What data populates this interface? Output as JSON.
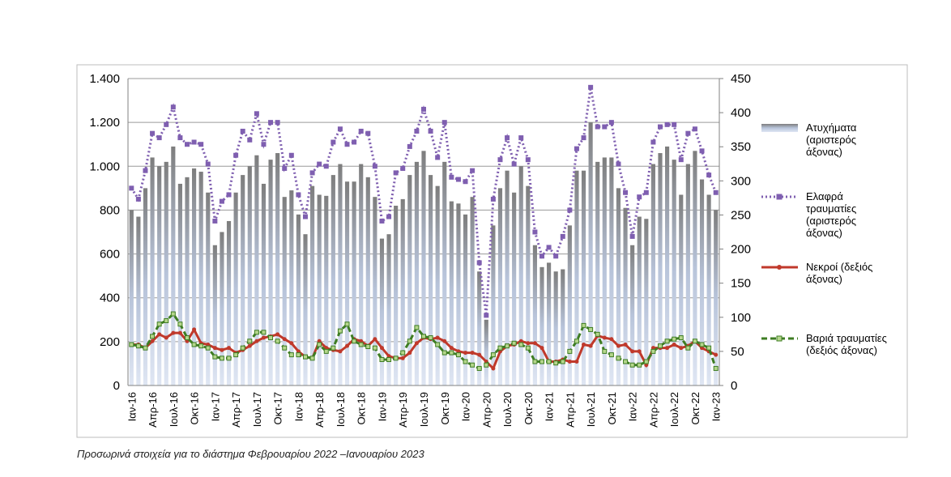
{
  "chart_data": {
    "type": "bar",
    "caption": "Προσωρινά στοιχεία για το διάστημα Φεβρουαρίου 2022 –Ιανουαρίου 2023",
    "categories": [
      "Ιαν-16",
      null,
      null,
      "Απρ-16",
      null,
      null,
      "Ιουλ-16",
      null,
      null,
      "Οκτ-16",
      null,
      null,
      "Ιαν-17",
      null,
      null,
      "Απρ-17",
      null,
      null,
      "Ιουλ-17",
      null,
      null,
      "Οκτ-17",
      null,
      null,
      "Ιαν-18",
      null,
      null,
      "Απρ-18",
      null,
      null,
      "Ιουλ-18",
      null,
      null,
      "Οκτ-18",
      null,
      null,
      "Ιαν-19",
      null,
      null,
      "Απρ-19",
      null,
      null,
      "Ιουλ-19",
      null,
      null,
      "Οκτ-19",
      null,
      null,
      "Ιαν-20",
      null,
      null,
      "Απρ-20",
      null,
      null,
      "Ιουλ-20",
      null,
      null,
      "Οκτ-20",
      null,
      null,
      "Ιαν-21",
      null,
      null,
      "Απρ-21",
      null,
      null,
      "Ιουλ-21",
      null,
      null,
      "Οκτ-21",
      null,
      null,
      "Ιαν-22",
      null,
      null,
      "Απρ-22",
      null,
      null,
      "Ιουλ-22",
      null,
      null,
      "Οκτ-22",
      null,
      null,
      "Ιαν-23"
    ],
    "series": [
      {
        "name": "Ατυχήματα (αριστερός άξονας)",
        "type": "bar",
        "color": "#8e8e8e",
        "values": [
          800,
          770,
          900,
          1040,
          1000,
          1020,
          1090,
          920,
          950,
          990,
          975,
          880,
          640,
          700,
          750,
          880,
          960,
          1000,
          1050,
          920,
          1030,
          1060,
          860,
          890,
          780,
          690,
          910,
          870,
          865,
          960,
          1010,
          930,
          930,
          1010,
          950,
          860,
          670,
          690,
          820,
          850,
          960,
          1020,
          1070,
          960,
          910,
          1020,
          840,
          830,
          780,
          860,
          520,
          300,
          730,
          900,
          980,
          880,
          1000,
          910,
          640,
          540,
          560,
          520,
          530,
          730,
          980,
          980,
          1200,
          1020,
          1040,
          1040,
          900,
          810,
          640,
          770,
          760,
          1010,
          1060,
          1090,
          1030,
          870,
          1010,
          1070,
          940,
          870,
          800
        ]
      },
      {
        "name": "Ελαφρά τραυματίες (αριστερός άξονας)",
        "type": "line",
        "dash": "dotted",
        "marker": "square",
        "color": "#7f5fb0",
        "values": [
          900,
          850,
          980,
          1150,
          1130,
          1190,
          1270,
          1130,
          1100,
          1110,
          1100,
          1010,
          750,
          840,
          870,
          1050,
          1160,
          1120,
          1240,
          1100,
          1200,
          1200,
          990,
          1050,
          870,
          770,
          970,
          1010,
          1000,
          1110,
          1170,
          1100,
          1110,
          1160,
          1150,
          1000,
          750,
          770,
          970,
          990,
          1090,
          1160,
          1260,
          1160,
          1040,
          1200,
          950,
          940,
          930,
          980,
          560,
          320,
          850,
          1030,
          1130,
          1010,
          1130,
          1030,
          700,
          590,
          630,
          590,
          680,
          800,
          1080,
          1130,
          1360,
          1180,
          1180,
          1200,
          1010,
          880,
          680,
          860,
          880,
          1110,
          1180,
          1190,
          1190,
          1030,
          1150,
          1170,
          1070,
          960,
          880
        ]
      },
      {
        "name": "Νεκροί (δεξιός άξονας)",
        "type": "line",
        "axis": "y2",
        "dash": "solid",
        "marker": "circle",
        "color": "#c0392b",
        "values": [
          60,
          60,
          55,
          65,
          75,
          70,
          77,
          77,
          65,
          82,
          62,
          60,
          55,
          52,
          55,
          48,
          52,
          58,
          65,
          70,
          72,
          75,
          68,
          62,
          50,
          42,
          40,
          65,
          55,
          52,
          50,
          58,
          68,
          65,
          58,
          68,
          55,
          43,
          40,
          40,
          48,
          62,
          70,
          68,
          70,
          65,
          55,
          50,
          48,
          48,
          45,
          35,
          25,
          50,
          58,
          60,
          65,
          62,
          62,
          55,
          35,
          35,
          38,
          35,
          35,
          60,
          58,
          73,
          70,
          68,
          58,
          60,
          50,
          50,
          30,
          55,
          55,
          55,
          60,
          55,
          58,
          65,
          55,
          50,
          45
        ]
      },
      {
        "name": "Βαριά τραυματίες (δεξιός άξονας)",
        "type": "line",
        "axis": "y2",
        "dash": "dashed",
        "marker": "square",
        "color": "#3e7d23",
        "values": [
          60,
          58,
          55,
          72,
          90,
          95,
          105,
          90,
          70,
          60,
          58,
          55,
          42,
          40,
          40,
          45,
          55,
          65,
          78,
          78,
          70,
          65,
          55,
          45,
          45,
          42,
          40,
          60,
          50,
          55,
          80,
          90,
          65,
          60,
          57,
          55,
          38,
          38,
          40,
          48,
          65,
          85,
          72,
          70,
          60,
          48,
          48,
          45,
          35,
          30,
          25,
          30,
          45,
          55,
          58,
          62,
          60,
          55,
          35,
          35,
          35,
          33,
          35,
          50,
          65,
          88,
          82,
          75,
          50,
          45,
          40,
          35,
          30,
          30,
          35,
          50,
          58,
          65,
          68,
          70,
          55,
          65,
          60,
          55,
          25
        ]
      }
    ],
    "ylim": [
      0,
      1400
    ],
    "yticks": [
      0,
      200,
      400,
      600,
      800,
      {
        "value": 1000,
        "label": "1.000"
      },
      {
        "value": 1200,
        "label": "1.200"
      },
      {
        "value": 1400,
        "label": "1.400"
      }
    ],
    "y2lim": [
      0,
      450
    ],
    "y2ticks": [
      0,
      50,
      100,
      150,
      200,
      250,
      300,
      350,
      400,
      450
    ],
    "grid": true
  }
}
